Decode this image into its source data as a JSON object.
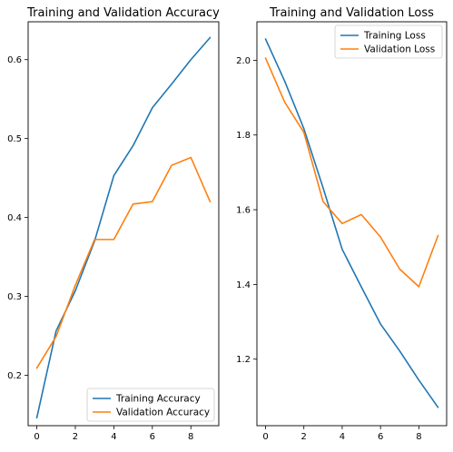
{
  "colors": {
    "training": "#1f77b4",
    "validation": "#ff7f0e"
  },
  "chart_data": [
    {
      "type": "line",
      "title": "Training and Validation Accuracy",
      "xlabel": "",
      "ylabel": "",
      "xlim": [
        -0.45,
        9.45
      ],
      "ylim": [
        0.136,
        0.648
      ],
      "xticks": [
        0,
        2,
        4,
        6,
        8
      ],
      "xtick_labels": [
        "0",
        "2",
        "4",
        "6",
        "8"
      ],
      "yticks": [
        0.2,
        0.3,
        0.4,
        0.5,
        0.6
      ],
      "ytick_labels": [
        "0.2",
        "0.3",
        "0.4",
        "0.5",
        "0.6"
      ],
      "grid": false,
      "legend_position": "lower-right",
      "x": [
        0,
        1,
        2,
        3,
        4,
        5,
        6,
        7,
        8,
        9
      ],
      "series": [
        {
          "name": "Training Accuracy",
          "color": "#1f77b4",
          "values": [
            0.146,
            0.256,
            0.307,
            0.37,
            0.453,
            0.491,
            0.539,
            0.569,
            0.6,
            0.628
          ]
        },
        {
          "name": "Validation Accuracy",
          "color": "#ff7f0e",
          "values": [
            0.209,
            0.249,
            0.314,
            0.372,
            0.372,
            0.417,
            0.42,
            0.466,
            0.476,
            0.42
          ]
        }
      ]
    },
    {
      "type": "line",
      "title": "Training and Validation Loss",
      "xlabel": "",
      "ylabel": "",
      "xlim": [
        -0.45,
        9.45
      ],
      "ylim": [
        1.022,
        2.103
      ],
      "xticks": [
        0,
        2,
        4,
        6,
        8
      ],
      "xtick_labels": [
        "0",
        "2",
        "4",
        "6",
        "8"
      ],
      "yticks": [
        1.2,
        1.4,
        1.6,
        1.8,
        2.0
      ],
      "ytick_labels": [
        "1.2",
        "1.4",
        "1.6",
        "1.8",
        "2.0"
      ],
      "grid": false,
      "legend_position": "upper-right",
      "x": [
        0,
        1,
        2,
        3,
        4,
        5,
        6,
        7,
        8,
        9
      ],
      "series": [
        {
          "name": "Training Loss",
          "color": "#1f77b4",
          "values": [
            2.057,
            1.944,
            1.817,
            1.659,
            1.494,
            1.393,
            1.294,
            1.222,
            1.144,
            1.071
          ]
        },
        {
          "name": "Validation Loss",
          "color": "#ff7f0e",
          "values": [
            2.006,
            1.888,
            1.807,
            1.622,
            1.563,
            1.587,
            1.527,
            1.441,
            1.394,
            1.531
          ]
        }
      ]
    }
  ]
}
